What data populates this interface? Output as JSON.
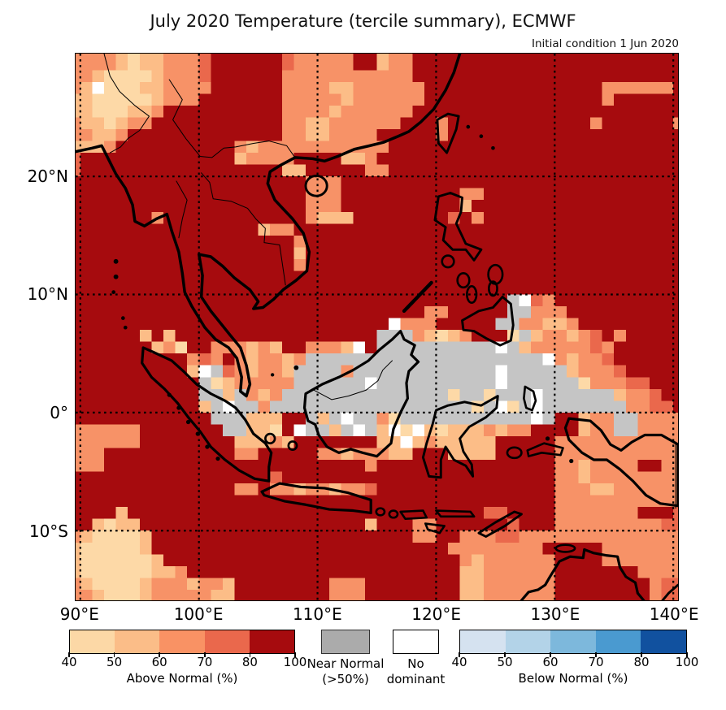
{
  "header": {
    "title": "July 2020 Temperature (tercile summary), ECMWF",
    "subtitle": "Initial condition 1 Jun 2020"
  },
  "legend": {
    "above": {
      "label": "Above Normal (%)",
      "ticks": [
        "40",
        "50",
        "60",
        "70",
        "80",
        "100"
      ],
      "colors": [
        "#fcd8a6",
        "#fbbd88",
        "#f99264",
        "#ea684c",
        "#a60b0e"
      ]
    },
    "near": {
      "line1": "Near Normal",
      "line2": "(>50%)",
      "color": "#ababab"
    },
    "none": {
      "line1": "No",
      "line2": "dominant",
      "color": "#ffffff"
    },
    "below": {
      "label": "Below Normal (%)",
      "ticks": [
        "40",
        "50",
        "60",
        "70",
        "80",
        "100"
      ],
      "colors": [
        "#d5e2f0",
        "#b3d3e8",
        "#7db8dc",
        "#4a9ad0",
        "#11519f"
      ]
    }
  },
  "chart_data": {
    "type": "heatmap",
    "subtype": "geographic-tercile-probability-grid",
    "title": "July 2020 Temperature (tercile summary), ECMWF",
    "subtitle": "Initial condition 1 Jun 2020",
    "projection": "plate-carree",
    "extent": {
      "lon_min": 89.6,
      "lon_max": 140.4,
      "lat_min": -15.9,
      "lat_max": 30.4
    },
    "x_axis": {
      "ticks": [
        {
          "label": "90°E",
          "lon": 90
        },
        {
          "label": "100°E",
          "lon": 100
        },
        {
          "label": "110°E",
          "lon": 110
        },
        {
          "label": "120°E",
          "lon": 120
        },
        {
          "label": "130°E",
          "lon": 130
        },
        {
          "label": "140°E",
          "lon": 140
        }
      ]
    },
    "y_axis": {
      "ticks": [
        {
          "label": "20°N",
          "lat": 20
        },
        {
          "label": "10°N",
          "lat": 10
        },
        {
          "label": "0°",
          "lat": 0
        },
        {
          "label": "10°S",
          "lat": -10
        }
      ]
    },
    "graticule": {
      "lons": [
        90,
        100,
        110,
        120,
        130,
        140
      ],
      "lats": [
        20,
        10,
        0,
        -10
      ],
      "style": "dotted"
    },
    "palette": {
      "a": "#fdd9a7",
      "b": "#fcbd87",
      "c": "#f79267",
      "d": "#ea684c",
      "e": "#a60b0e",
      "n": "#c5c5c5",
      "w": "#ffffff"
    },
    "category_meaning": {
      "a": "Above Normal 40-50%",
      "b": "Above Normal 50-60%",
      "c": "Above Normal 60-70%",
      "d": "Above Normal 70-80%",
      "e": "Above Normal 80-100%",
      "n": "Near Normal (>50%)",
      "w": "No dominant tercile"
    },
    "grid": {
      "cols": 52,
      "rows": 47,
      "note": "1-degree cells; col 0 spans lon 89.6-90, cols 1-50 span 1 deg from 89+k to 90+k, col 51 spans 140-140.4; row 0 spans lat 30.4-30, rows 1-45 span 1 deg from 31-r down, row 46 spans -15 to -15.9",
      "rows_encoding": [
        "ccccbabbcccdeeeeeedccccceebcceeeeeeeeeeeeeeeeeeeeeee",
        "ccccbabbcccdeeeeeedccccceebcceeeeeeeeeeeeeeeeeeeeeee",
        "ccbaaaabcccdeeeeeeccccccccccceeeeeeeeeeeeeeeeeeeeeee",
        "cbwaaabbcccceeeeeeccccbbcccccceeeeeeeeeeeeeeecccccce",
        "bbaaaaabccceeeeeeecccccbcccccceeeeeeeeeeeeeeeceeeeee",
        "bbaaabbceeeeeeeeeeccccbcccccceeeeeeeeeeeeeeeeeeeeeee",
        "cbbabcceeeeeeeeeeeccbbcccccceeeceeeeeeeeeeeeceeeeeec",
        "ccbbceeeeeeeeeeeeeccbbcccceeeeeceeeeeeeeeeeeeeeeeeee",
        "bbbceeeeeeeeeecbccccccccccceeeeeeeeeeeeeeeeeeeeeeeee",
        "deeeeeeeeeeeeebcccceeeebbceeeeeeeeeeeeeeeeeeeeeeeeee",
        "deeeeeeeeeeeeeeeeebbeeeeecceeeeeeeeeeeeeeeeeeeeeeeee",
        "eeeeeeeeeeeeeeeeeeeeccceeeeeeeeeeeeeeeeeeeeeeeeeeeee",
        "eeeeeeeeeeeeeeeeeeeeccceeeeeeeeeecceeeeeeeeeeeeeeeee",
        "eeeeeeeeeeeeeeeeeeeeccceeeeeeeeeebeeeeeeeeeeeeeeeeee",
        "eeeeeeeceeeeeeeeeeeecbbbeeeeeeeedeceeeeeeeeeeeeeeeee",
        "eeeeeeeeeeeeeeeebcceeeeeeeeeeeeeeeeeeeeeeeeeeeeeeeee",
        "eeeeeeeeeeeeeeeeeeeceeeeeeeeeeeeeeeeeeeeeeeeeeeeeeee",
        "eeeeeeeeeeeeeeeeeeebeeeeeeeeeeeeeeeeeeeeeeeeeeeeeeee",
        "eeeeeeeeeeeeeeeeeeeceeeeeeeeeeeeeeeeeeeeeeeeeeeeeeee",
        "eeeeeeeeeeeeeeeeeeeeeeeeeeeeeeeeeeeeeeeeeeeeeeeeeeee",
        "eeeeeeeeeeeeeeeeeeeeeeeeeeeeeeeeeeeeeeeeeeeeeeeeeeee",
        "eeeeeeeeeeeeeeeeeeeeeeeeeeeeeeeeeeeeenwdceeeeeeeeeee",
        "eeeeeeeeeeeeeeeeeeeeeeeeeeeeeecceeeeennccceeeeeeeeee",
        "eeeeeeeeeeeeeeeeeeeeeeeeeeewccceeeeennccbbceeeeeeeee",
        "eeeeeebebeeeeeeeeeeeeeeeeennncbabceeeanbccbcdeceeeeee",
        "eeeeeeebcaeecccbcbeecccbwennnnnnnnnnwnbcccccdceeeeee",
        "eeeeeeeeeecdcecbccbcnnnnnnnnnnnnnnnnnnnnwcbccdeeeeee",
        "eeeeeeeeeebwndcbccbnnnncnnnnnnnnnnnnwnnnnnbcccdeeeee",
        "eeeeeeeeeeenabcccccnnnnnnwnnnnnnnnnnwnnnnnnacccddeee",
        "eeeeeeeeeeennbncbcnnnnnnnnnnnnnnannannnwnnnnnnbccdee",
        "eeeeeeeeeeebnwnncnnnnnnnnnnnnnnnnnanwanwnnnnnnnccdde",
        "eeeeeeeeeeeennnbbbeenbnwnncannnnnnnnnnnwneebccnncccc",
        "cccccceeeeeeennbbaewnnbnwnbwawbabbbcbcceeeebccnncccc",
        "cccccceeeeeeeebbbcbeeeeeeebbwbcbbbbbeeeeeccccccccccc",
        "ccceeeeeeeeeeecceeeeeccbcccbbeeebbbbeeeeeccccccccccc",
        "ccceeeeeeeeeeeeeeeeeeeeeeceeeeeeeeeeeeeeeccbcccceecc",
        "eeeeeeeeeeeeeeeeedeeeeeeeeeeeeeeeeeeeeeeeccbcccccccc",
        "eeeeeeeeeeeeeecceccbccbccdeeeeeeeeeeeeeeecccbbcccccc",
        "eeeeeeeeeeeeeeeeeeeeeeeeeeeeeeeeeeeeeeeeeccccccccccc",
        "eeeebeeeeeeeeeeeeeeeeeeeeeeeeeeeeeeddeeeecccccccNeedd",
        "eebabbeeeeeeeeeeeeeeeeeeebeeecceeeeeedeeecccccccccdd",
        "cbaaaabeeeeeeeeeeeeeeeeeeeeeecceecccddccccccccccccccc",
        "baaaaabeeeeeeeeeeeeeeeeeeeeeeeeeccccccccefeeeccccccc",
        "baaaaaabeeeeeeeeeeeeeeeeeeeeeeeeecbcccccceeeeccccccc",
        "baaaaaabbceeeeeeeeeeeeeeeeeeeeeeebbcccccceeeeeeecccc",
        "cbaaaabcccbccbeeeeeeeecccee eeeeebbcccccceeeeeeeecdd",
        "ccbaaabcccccbbeeeeeeeecccee eeeeebbcccccceeeeeeeecdd"
      ]
    }
  }
}
